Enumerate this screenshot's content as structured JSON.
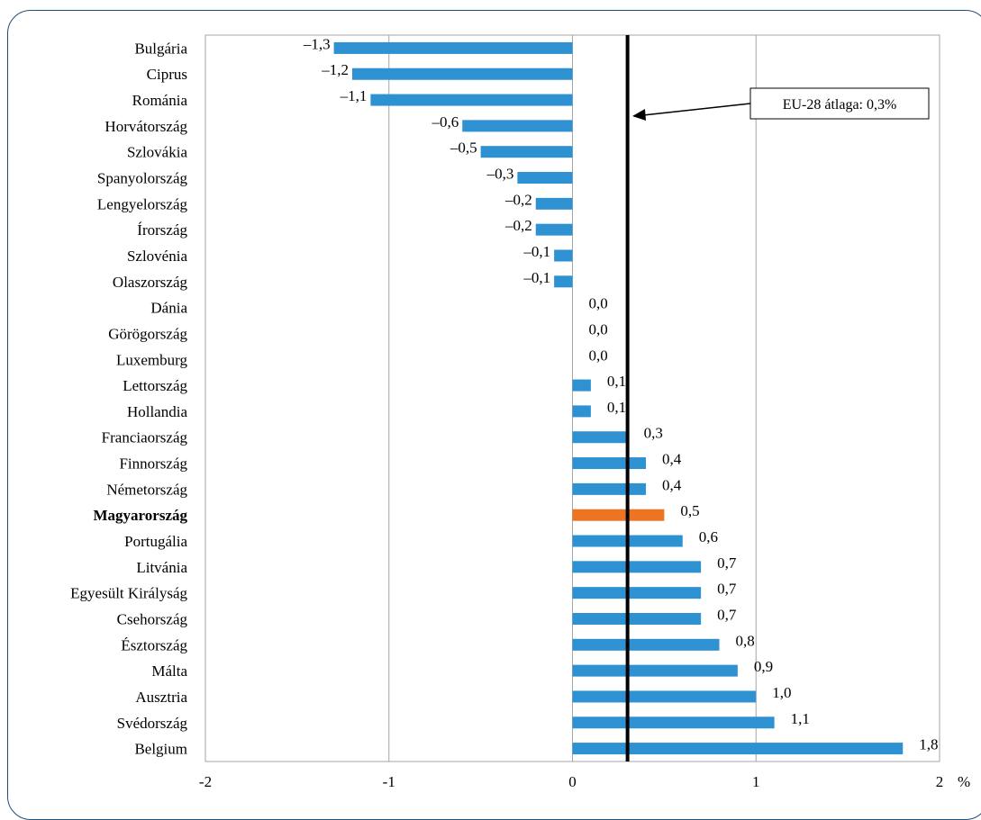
{
  "chart_data": {
    "type": "bar",
    "orientation": "horizontal",
    "categories": [
      "Bulgária",
      "Ciprus",
      "Románia",
      "Horvátország",
      "Szlovákia",
      "Spanyolország",
      "Lengyelország",
      "Írország",
      "Szlovénia",
      "Olaszország",
      "Dánia",
      "Görögország",
      "Luxemburg",
      "Lettország",
      "Hollandia",
      "Franciaország",
      "Finnország",
      "Németország",
      "Magyarország",
      "Portugália",
      "Litvánia",
      "Egyesült Királyság",
      "Csehország",
      "Észtország",
      "Málta",
      "Ausztria",
      "Svédország",
      "Belgium"
    ],
    "values": [
      -1.3,
      -1.2,
      -1.1,
      -0.6,
      -0.5,
      -0.3,
      -0.2,
      -0.2,
      -0.1,
      -0.1,
      0.0,
      0.0,
      0.0,
      0.1,
      0.1,
      0.3,
      0.4,
      0.4,
      0.5,
      0.6,
      0.7,
      0.7,
      0.7,
      0.8,
      0.9,
      1.0,
      1.1,
      1.8
    ],
    "value_labels": [
      "–1,3",
      "–1,2",
      "–1,1",
      "–0,6",
      "–0,5",
      "–0,3",
      "–0,2",
      "–0,2",
      "–0,1",
      "–0,1",
      "0,0",
      "0,0",
      "0,0",
      "0,1",
      "0,1",
      "0,3",
      "0,4",
      "0,4",
      "0,5",
      "0,6",
      "0,7",
      "0,7",
      "0,7",
      "0,8",
      "0,9",
      "1,0",
      "1,1",
      "1,8"
    ],
    "highlight_category": "Magyarország",
    "xlim": [
      -2,
      2
    ],
    "x_ticks": [
      -2,
      -1,
      0,
      1,
      2
    ],
    "x_tick_labels": [
      "-2",
      "-1",
      "0",
      "1",
      "2"
    ],
    "x_unit": "%",
    "grid": "vertical",
    "reference_line": {
      "value": 0.3,
      "label": "EU-28 átlaga: 0,3%"
    },
    "colors": {
      "bar": "#2e91d2",
      "highlight": "#ed7422",
      "reference": "#000000",
      "grid": "#a6a6a6"
    }
  }
}
